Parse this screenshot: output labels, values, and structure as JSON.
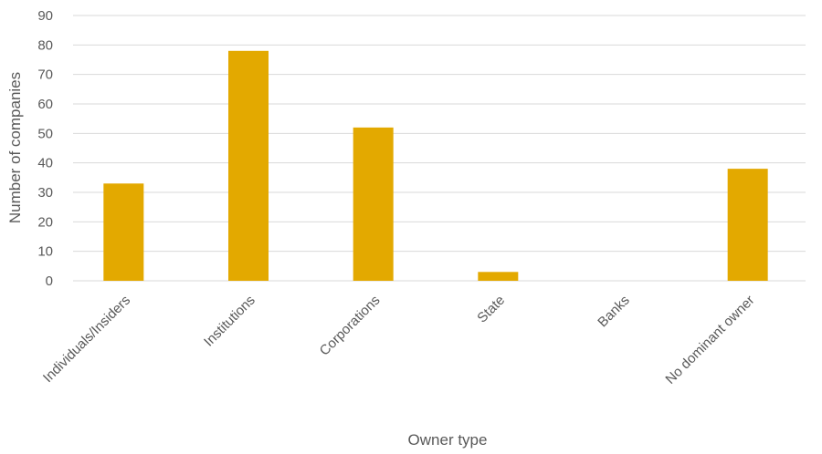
{
  "chart_data": {
    "type": "bar",
    "title": "",
    "xlabel": "Owner type",
    "ylabel": "Number of companies",
    "categories": [
      "Individuals/Insiders",
      "Institutions",
      "Corporations",
      "State",
      "Banks",
      "No dominant owner"
    ],
    "values": [
      33,
      78,
      52,
      3,
      0,
      38
    ],
    "ylim": [
      0,
      90
    ],
    "yticks": [
      0,
      10,
      20,
      30,
      40,
      50,
      60,
      70,
      80,
      90
    ],
    "grid": true,
    "legend": "none",
    "bar_color": "#E3A900",
    "grid_color": "#D9D9D9"
  }
}
